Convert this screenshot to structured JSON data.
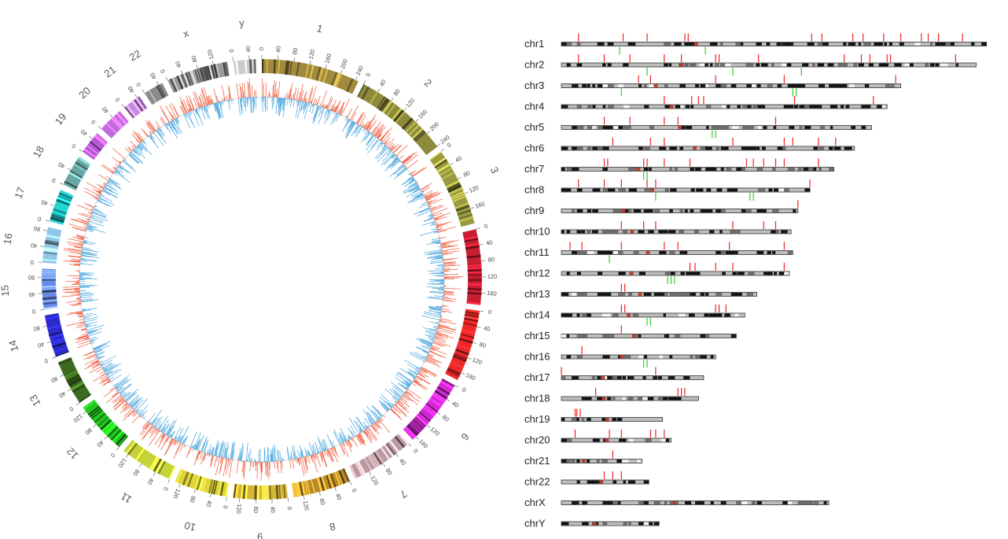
{
  "colors": {
    "gain": "#f26b4f",
    "loss": "#5aaee0",
    "marker_red": "#ee2222",
    "marker_green": "#33cc33",
    "ideogram_border": "#333333",
    "ring_colors": {
      "1": "#a08a3c",
      "2": "#8d8a3c",
      "3": "#9a9a3f",
      "4": "#c81e32",
      "5": "#ee2828",
      "6": "#d22ad2",
      "7": "#b89aa0",
      "8": "#b88a2a",
      "9": "#d6b63a",
      "10": "#e0d43a",
      "11": "#c6d23a",
      "12": "#22c61e",
      "13": "#3c6a1e",
      "14": "#2a2ac8",
      "15": "#6a8ae8",
      "16": "#92c6e6",
      "17": "#22d6d6",
      "18": "#6aa6a6",
      "19": "#b45ad6",
      "20": "#c26ae0",
      "21": "#c48ae0",
      "22": "#8a8a8a",
      "x": "#9a9a9a",
      "y": "#cccccc"
    }
  },
  "circos": {
    "chromosomes": [
      {
        "id": "1",
        "label": "1",
        "length": 248,
        "ticks": [
          0,
          40,
          80,
          120,
          160,
          200,
          240
        ]
      },
      {
        "id": "2",
        "label": "2",
        "length": 242,
        "ticks": [
          0,
          40,
          80,
          120,
          160,
          200,
          240
        ]
      },
      {
        "id": "3",
        "label": "3",
        "length": 198,
        "ticks": [
          0,
          40,
          80,
          120,
          160
        ]
      },
      {
        "id": "4",
        "label": "4",
        "length": 190,
        "ticks": [
          0,
          40,
          80,
          120,
          160
        ]
      },
      {
        "id": "5",
        "label": "5",
        "length": 181,
        "ticks": [
          0,
          40,
          80,
          120,
          160
        ]
      },
      {
        "id": "6",
        "label": "6",
        "length": 171,
        "ticks": [
          0,
          40,
          80,
          120,
          160
        ]
      },
      {
        "id": "7",
        "label": "7",
        "length": 159,
        "ticks": [
          0,
          40,
          80,
          120
        ]
      },
      {
        "id": "8",
        "label": "8",
        "length": 145,
        "ticks": [
          0,
          40,
          80,
          120
        ]
      },
      {
        "id": "9",
        "label": "9",
        "length": 138,
        "ticks": [
          0,
          40,
          80,
          120
        ]
      },
      {
        "id": "10",
        "label": "10",
        "length": 134,
        "ticks": [
          0,
          40,
          80,
          120
        ]
      },
      {
        "id": "11",
        "label": "11",
        "length": 135,
        "ticks": [
          0,
          40,
          80,
          120
        ]
      },
      {
        "id": "12",
        "label": "12",
        "length": 133,
        "ticks": [
          0,
          40,
          80,
          120
        ]
      },
      {
        "id": "13",
        "label": "13",
        "length": 114,
        "ticks": [
          0,
          40,
          80
        ]
      },
      {
        "id": "14",
        "label": "14",
        "length": 107,
        "ticks": [
          0,
          40,
          80
        ]
      },
      {
        "id": "15",
        "label": "15",
        "length": 102,
        "ticks": [
          0,
          40,
          80
        ]
      },
      {
        "id": "16",
        "label": "16",
        "length": 90,
        "ticks": [
          0,
          40,
          80
        ]
      },
      {
        "id": "17",
        "label": "17",
        "length": 83,
        "ticks": [
          0,
          40
        ]
      },
      {
        "id": "18",
        "label": "18",
        "length": 80,
        "ticks": [
          0,
          40
        ]
      },
      {
        "id": "19",
        "label": "19",
        "length": 59,
        "ticks": [
          0,
          40
        ]
      },
      {
        "id": "20",
        "label": "20",
        "length": 64,
        "ticks": [
          0,
          40
        ]
      },
      {
        "id": "21",
        "label": "21",
        "length": 47,
        "ticks": [
          0,
          40
        ]
      },
      {
        "id": "22",
        "label": "22",
        "length": 51,
        "ticks": [
          0,
          40
        ]
      },
      {
        "id": "x",
        "label": "x",
        "length": 156,
        "ticks": [
          0,
          40,
          80,
          120
        ]
      },
      {
        "id": "y",
        "label": "y",
        "length": 57,
        "ticks": [
          0,
          40
        ]
      }
    ]
  },
  "karyogram": {
    "chromosomes": [
      {
        "label": "chr1",
        "length": 248,
        "red_marks": [
          10,
          36,
          50,
          72,
          74,
          146,
          152,
          170,
          176,
          188,
          198,
          210,
          214,
          220,
          234
        ],
        "green_marks": [
          34,
          84
        ]
      },
      {
        "label": "chr2",
        "length": 242,
        "red_marks": [
          10,
          25,
          40,
          60,
          70,
          90,
          92,
          115,
          165,
          175,
          180,
          190,
          192,
          230
        ],
        "green_marks": [
          50,
          100,
          140
        ]
      },
      {
        "label": "chr3",
        "length": 198,
        "red_marks": [
          45,
          52,
          90,
          130,
          195
        ],
        "green_marks": [
          35,
          135,
          137
        ]
      },
      {
        "label": "chr4",
        "length": 190,
        "red_marks": [
          60,
          76,
          80,
          83,
          136,
          182
        ],
        "green_marks": []
      },
      {
        "label": "chr5",
        "length": 181,
        "red_marks": [
          25,
          40,
          60,
          68,
          125
        ],
        "green_marks": [
          88,
          90
        ]
      },
      {
        "label": "chr6",
        "length": 171,
        "red_marks": [
          30,
          52,
          60,
          100,
          130,
          135,
          150,
          160
        ],
        "green_marks": []
      },
      {
        "label": "chr7",
        "length": 159,
        "red_marks": [
          25,
          27,
          48,
          50,
          60,
          75,
          108,
          112,
          118,
          125,
          130,
          150
        ],
        "green_marks": [
          48,
          50
        ]
      },
      {
        "label": "chr8",
        "length": 145,
        "red_marks": [
          10,
          25,
          35,
          50,
          55,
          145
        ],
        "green_marks": [
          55,
          110,
          112
        ]
      },
      {
        "label": "chr9",
        "length": 138,
        "red_marks": [
          138
        ],
        "green_marks": []
      },
      {
        "label": "chr10",
        "length": 134,
        "red_marks": [
          35,
          48,
          55,
          100,
          118,
          125
        ],
        "green_marks": []
      },
      {
        "label": "chr11",
        "length": 135,
        "red_marks": [
          5,
          12,
          35,
          60,
          68,
          98,
          130
        ],
        "green_marks": [
          28
        ]
      },
      {
        "label": "chr12",
        "length": 133,
        "red_marks": [
          75,
          78,
          90,
          100,
          130
        ],
        "green_marks": [
          62,
          64,
          66
        ]
      },
      {
        "label": "chr13",
        "length": 114,
        "red_marks": [
          35,
          37
        ],
        "green_marks": []
      },
      {
        "label": "chr14",
        "length": 107,
        "red_marks": [
          35,
          37,
          90,
          92,
          96
        ],
        "green_marks": [
          50,
          52
        ]
      },
      {
        "label": "chr15",
        "length": 102,
        "red_marks": [
          35
        ],
        "green_marks": []
      },
      {
        "label": "chr16",
        "length": 90,
        "red_marks": [
          12
        ],
        "green_marks": [
          48,
          50
        ]
      },
      {
        "label": "chr17",
        "length": 83,
        "red_marks": [
          0,
          55
        ],
        "green_marks": []
      },
      {
        "label": "chr18",
        "length": 80,
        "red_marks": [
          20,
          68,
          70,
          72
        ],
        "green_marks": []
      },
      {
        "label": "chr19",
        "length": 59,
        "red_marks": [
          8,
          9,
          11
        ],
        "green_marks": []
      },
      {
        "label": "chr20",
        "length": 64,
        "red_marks": [
          8,
          28,
          35,
          52,
          55,
          60
        ],
        "green_marks": []
      },
      {
        "label": "chr21",
        "length": 47,
        "red_marks": [
          30
        ],
        "green_marks": []
      },
      {
        "label": "chr22",
        "length": 51,
        "red_marks": [
          25,
          30,
          35
        ],
        "green_marks": []
      },
      {
        "label": "chrX",
        "length": 156,
        "red_marks": [],
        "green_marks": []
      },
      {
        "label": "chrY",
        "length": 57,
        "red_marks": [],
        "green_marks": []
      }
    ]
  }
}
